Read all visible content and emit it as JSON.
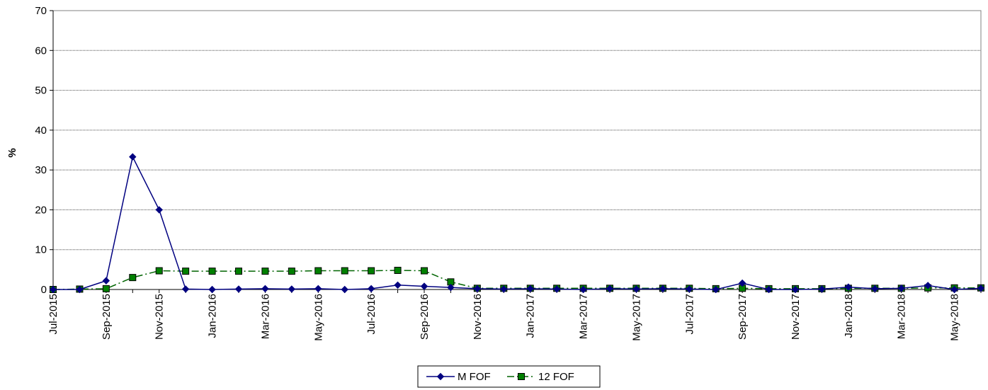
{
  "chart_data": {
    "type": "line",
    "title": "",
    "xlabel": "",
    "ylabel": "%",
    "ylim": [
      0,
      70
    ],
    "yticks": [
      0,
      10,
      20,
      30,
      40,
      50,
      60,
      70
    ],
    "grid": true,
    "legend_position": "bottom-center",
    "x": [
      "Jul-2015",
      "Aug-2015",
      "Sep-2015",
      "Oct-2015",
      "Nov-2015",
      "Dec-2015",
      "Jan-2016",
      "Feb-2016",
      "Mar-2016",
      "Apr-2016",
      "May-2016",
      "Jun-2016",
      "Jul-2016",
      "Aug-2016",
      "Sep-2016",
      "Oct-2016",
      "Nov-2016",
      "Dec-2016",
      "Jan-2017",
      "Feb-2017",
      "Mar-2017",
      "Apr-2017",
      "May-2017",
      "Jun-2017",
      "Jul-2017",
      "Aug-2017",
      "Sep-2017",
      "Oct-2017",
      "Nov-2017",
      "Dec-2017",
      "Jan-2018",
      "Feb-2018",
      "Mar-2018",
      "Apr-2018",
      "May-2018",
      "Jun-2018"
    ],
    "x_tick_labels": [
      "Jul-2015",
      "Sep-2015",
      "Nov-2015",
      "Jan-2016",
      "Mar-2016",
      "May-2016",
      "Jul-2016",
      "Sep-2016",
      "Nov-2016",
      "Jan-2017",
      "Mar-2017",
      "May-2017",
      "Jul-2017",
      "Sep-2017",
      "Nov-2017",
      "Jan-2018",
      "Mar-2018",
      "May-2018"
    ],
    "series": [
      {
        "name": "M FOF",
        "color": "#000080",
        "marker": "diamond",
        "line": "solid",
        "values": [
          0,
          0,
          2.2,
          33.3,
          20.0,
          0.1,
          0,
          0.1,
          0.2,
          0.1,
          0.2,
          0,
          0.2,
          1.1,
          0.8,
          0.5,
          0.2,
          0.1,
          0.2,
          0.1,
          0,
          0.2,
          0.1,
          0.2,
          0.1,
          0,
          1.6,
          0,
          0,
          0.1,
          0.6,
          0.2,
          0.3,
          1.0,
          0,
          0.3
        ]
      },
      {
        "name": "12 FOF",
        "color": "#006400",
        "marker_color": "#008000",
        "marker": "square",
        "line": "dash-dot",
        "values": [
          0,
          0.1,
          0.2,
          3.0,
          4.7,
          4.6,
          4.6,
          4.6,
          4.6,
          4.6,
          4.7,
          4.7,
          4.7,
          4.8,
          4.7,
          1.9,
          0.3,
          0.3,
          0.3,
          0.3,
          0.3,
          0.3,
          0.3,
          0.3,
          0.3,
          0.2,
          0.3,
          0.2,
          0.2,
          0.2,
          0.3,
          0.3,
          0.3,
          0.4,
          0.4,
          0.4
        ]
      }
    ]
  }
}
